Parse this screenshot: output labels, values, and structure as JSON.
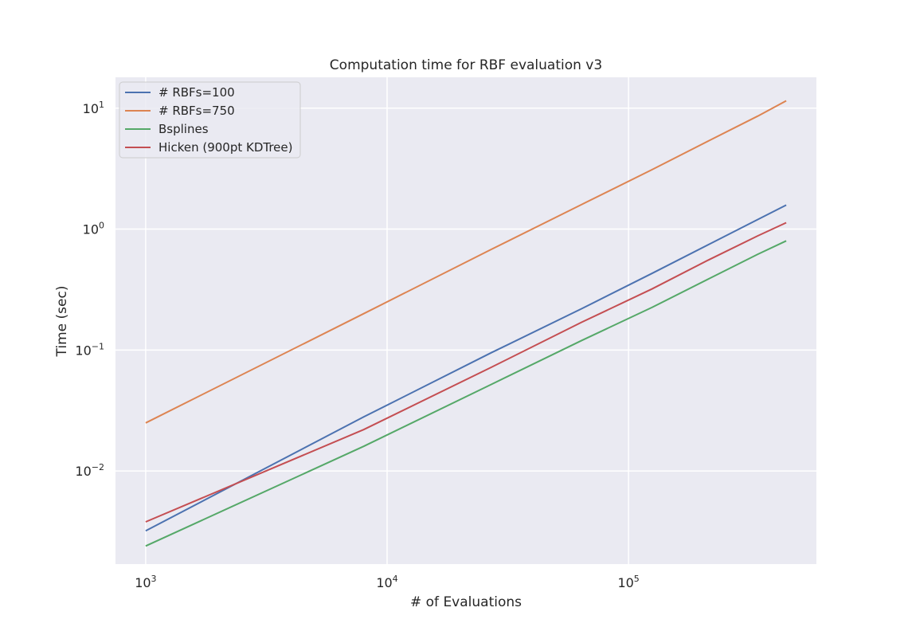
{
  "chart_data": {
    "type": "line",
    "title": "Computation time for RBF evaluation v3",
    "xlabel": "# of Evaluations",
    "ylabel": "Time (sec)",
    "xscale": "log",
    "yscale": "log",
    "xlim": [
      750,
      600000
    ],
    "ylim": [
      0.0017,
      18
    ],
    "grid": true,
    "legend_position": "top-left",
    "x_ticks": [
      {
        "value": 1000,
        "base": "10",
        "exp": "3"
      },
      {
        "value": 10000,
        "base": "10",
        "exp": "4"
      },
      {
        "value": 100000,
        "base": "10",
        "exp": "5"
      }
    ],
    "y_ticks": [
      {
        "value": 0.01,
        "base": "10",
        "exp": "−2"
      },
      {
        "value": 0.1,
        "base": "10",
        "exp": "−1"
      },
      {
        "value": 1,
        "base": "10",
        "exp": "0"
      },
      {
        "value": 10,
        "base": "10",
        "exp": "1"
      }
    ],
    "series": [
      {
        "name": "# RBFs=100",
        "color": "#4c72b0",
        "x": [
          1000,
          8000,
          27000,
          64000,
          125000,
          216000,
          343000,
          450000
        ],
        "y": [
          0.0032,
          0.028,
          0.095,
          0.22,
          0.43,
          0.75,
          1.2,
          1.58
        ]
      },
      {
        "name": "# RBFs=750",
        "color": "#dd8452",
        "x": [
          1000,
          8000,
          27000,
          64000,
          125000,
          216000,
          343000,
          450000
        ],
        "y": [
          0.025,
          0.2,
          0.68,
          1.6,
          3.1,
          5.4,
          8.6,
          11.5
        ]
      },
      {
        "name": "Bsplines",
        "color": "#55a868",
        "x": [
          1000,
          8000,
          27000,
          64000,
          125000,
          216000,
          343000,
          450000
        ],
        "y": [
          0.0024,
          0.016,
          0.052,
          0.12,
          0.225,
          0.39,
          0.62,
          0.8
        ]
      },
      {
        "name": "Hicken (900pt KDTree)",
        "color": "#c44e52",
        "x": [
          1000,
          8000,
          27000,
          64000,
          125000,
          216000,
          343000,
          450000
        ],
        "y": [
          0.0038,
          0.022,
          0.072,
          0.17,
          0.32,
          0.56,
          0.88,
          1.13
        ]
      }
    ]
  }
}
